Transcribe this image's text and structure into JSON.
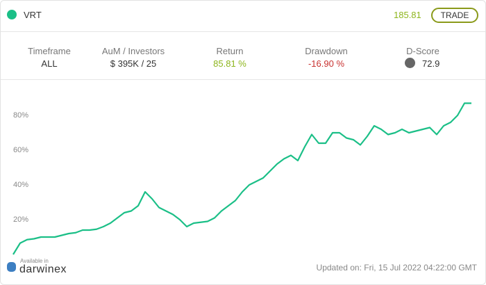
{
  "header": {
    "name": "VRT",
    "price": "185.81",
    "button": "TRADE"
  },
  "stats": [
    {
      "label": "Timeframe",
      "value": "ALL"
    },
    {
      "label": "AuM / Investors",
      "value": "$ 395K / 25"
    },
    {
      "label": "Return",
      "value": "85.81 %"
    },
    {
      "label": "Drawdown",
      "value": "-16.90 %"
    },
    {
      "label": "D-Score",
      "value": "72.9"
    }
  ],
  "footer": {
    "brand_small": "Available in",
    "brand": "darwinex",
    "updated": "Updated on: Fri, 15 Jul 2022 04:22:00 GMT"
  },
  "chart_data": {
    "type": "line",
    "color": "#1bbf87",
    "values": [
      0,
      6.5,
      8.5,
      9,
      10,
      10,
      10,
      11,
      12,
      12.5,
      14,
      14,
      14.5,
      16,
      18,
      21,
      24,
      25,
      28,
      36,
      32,
      27,
      25,
      23,
      20,
      16,
      18,
      18.5,
      19,
      21,
      25,
      28,
      31,
      36,
      40,
      42,
      44,
      48,
      52,
      55,
      57,
      54,
      62,
      69,
      64,
      64,
      70,
      70,
      67,
      66,
      63,
      68,
      74,
      72,
      69,
      70,
      72,
      70,
      71,
      72,
      73,
      69,
      74,
      76,
      80,
      87,
      87
    ],
    "ylim": [
      -2,
      96
    ],
    "yticks": [
      {
        "value": 20,
        "label": "20%"
      },
      {
        "value": 40,
        "label": "40%"
      },
      {
        "value": 60,
        "label": "60%"
      },
      {
        "value": 80,
        "label": "80%"
      }
    ]
  }
}
